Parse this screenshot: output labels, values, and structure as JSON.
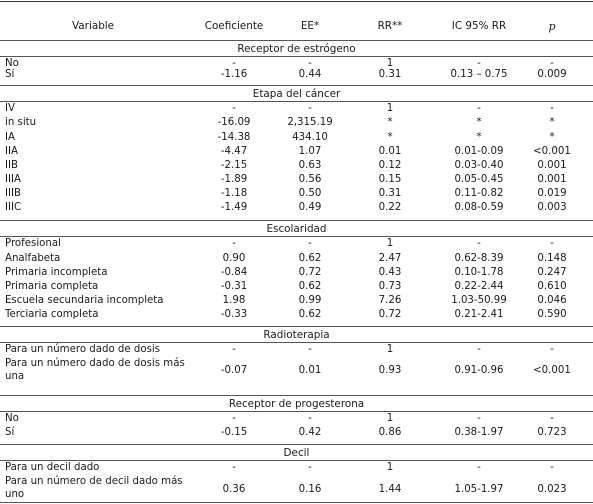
{
  "headers": [
    "Variable",
    "Coeficiente",
    "EE*",
    "RR**",
    "IC 95% RR",
    "p"
  ],
  "sections": [
    {
      "title": "Receptor de estrógeno",
      "rows": [
        [
          "No",
          "-",
          "-",
          "1",
          "-",
          "-"
        ],
        [
          "Sí",
          "-1.16",
          "0.44",
          "0.31",
          "0.13 – 0.75",
          "0.009"
        ]
      ]
    },
    {
      "title": "Etapa del cáncer",
      "rows": [
        [
          "IV",
          "-",
          "-",
          "1",
          "-",
          "-"
        ],
        [
          "in situ",
          "-16.09",
          "2,315.19",
          "*",
          "*",
          "*"
        ],
        [
          "IA",
          "-14.38",
          "434.10",
          "*",
          "*",
          "*"
        ],
        [
          "IIA",
          "-4.47",
          "1.07",
          "0.01",
          "0.01-0.09",
          "<0.001"
        ],
        [
          "IIB",
          "-2.15",
          "0.63",
          "0.12",
          "0.03-0.40",
          "0.001"
        ],
        [
          "IIIA",
          "-1.89",
          "0.56",
          "0.15",
          "0.05-0.45",
          "0.001"
        ],
        [
          "IIIB",
          "-1.18",
          "0.50",
          "0.31",
          "0.11-0.82",
          "0.019"
        ],
        [
          "IIIC",
          "-1.49",
          "0.49",
          "0.22",
          "0.08-0.59",
          "0.003"
        ]
      ]
    },
    {
      "title": "Escolaridad",
      "rows": [
        [
          "Profesional",
          "-",
          "-",
          "1",
          "-",
          "-"
        ],
        [
          "Analfabeta",
          "0.90",
          "0.62",
          "2.47",
          "0.62-8.39",
          "0.148"
        ],
        [
          "Primaria incompleta",
          "-0.84",
          "0.72",
          "0.43",
          "0.10-1.78",
          "0.247"
        ],
        [
          "Primaria completa",
          "-0.31",
          "0.62",
          "0.73",
          "0.22-2.44",
          "0.610"
        ],
        [
          "Escuela secundaria incompleta",
          "1.98",
          "0.99",
          "7.26",
          "1.03-50.99",
          "0.046"
        ],
        [
          "Terciaria completa",
          "-0.33",
          "0.62",
          "0.72",
          "0.21-2.41",
          "0.590"
        ]
      ]
    },
    {
      "title": "Radioterapia",
      "rows": [
        [
          "Para un número dado de dosis",
          "-",
          "-",
          "1",
          "-",
          "-"
        ],
        [
          "Para un número dado de dosis más una",
          "-0.07",
          "0.01",
          "0.93",
          "0.91-0.96",
          "<0.001"
        ]
      ]
    },
    {
      "title": "Receptor de progesterona",
      "rows": [
        [
          "No",
          "-",
          "-",
          "1",
          "-",
          "-"
        ],
        [
          "Sí",
          "-0.15",
          "0.42",
          "0.86",
          "0.38-1.97",
          "0.723"
        ]
      ]
    },
    {
      "title": "Decil",
      "rows": [
        [
          "Para un decil dado",
          "-",
          "-",
          "1",
          "-",
          "-"
        ],
        [
          "Para un número de decil dado más uno",
          "0.36",
          "0.16",
          "1.44",
          "1.05-1.97",
          "0.023"
        ]
      ]
    }
  ]
}
